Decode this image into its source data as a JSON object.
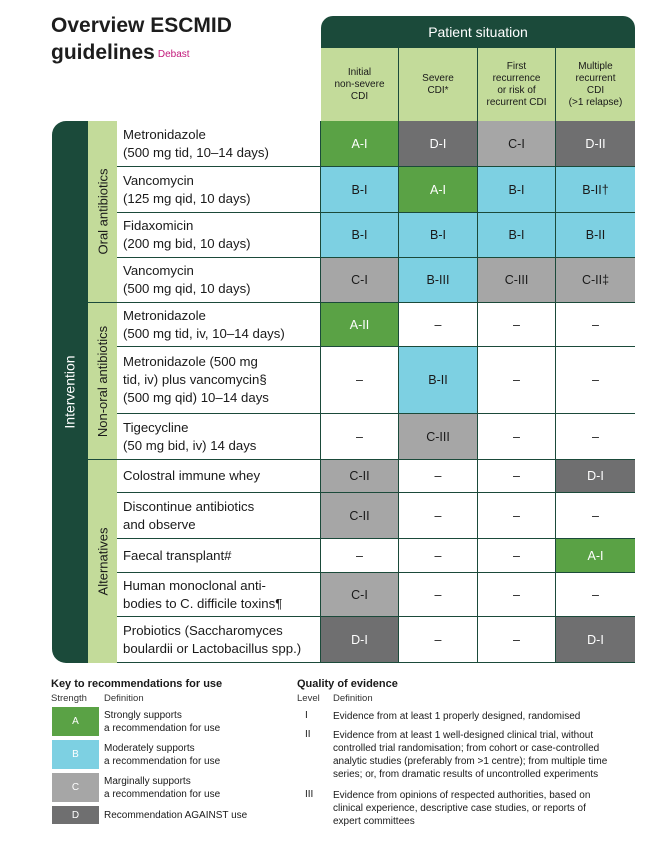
{
  "title_line1": "Overview ESCMID",
  "title_line2": "guidelines",
  "title_sup": "Debast",
  "patient_situation": "Patient situation",
  "columns": [
    [
      "Initial",
      "non-severe",
      "CDI"
    ],
    [
      "Severe",
      "CDI*"
    ],
    [
      "First",
      "recurrence",
      "or risk of",
      "recurrent CDI"
    ],
    [
      "Multiple",
      "recurrent",
      "CDI",
      "(>1 relapse)"
    ]
  ],
  "side_label": "Intervention",
  "groups": [
    "Oral antibiotics",
    "Non-oral antibiotics",
    "Alternatives"
  ],
  "rows": [
    {
      "drug": [
        "Metronidazole",
        "(500 mg tid, 10–14 days)"
      ],
      "cells": [
        [
          "A",
          "A-I"
        ],
        [
          "D",
          "D-I"
        ],
        [
          "C",
          "C-I"
        ],
        [
          "D",
          "D-II"
        ]
      ]
    },
    {
      "drug": [
        "Vancomycin",
        "(125 mg qid, 10 days)"
      ],
      "cells": [
        [
          "B",
          "B-I"
        ],
        [
          "A",
          "A-I"
        ],
        [
          "B",
          "B-I"
        ],
        [
          "B",
          "B-II†"
        ]
      ]
    },
    {
      "drug": [
        "Fidaxomicin",
        "(200 mg bid, 10 days)"
      ],
      "cells": [
        [
          "B",
          "B-I"
        ],
        [
          "B",
          "B-I"
        ],
        [
          "B",
          "B-I"
        ],
        [
          "B",
          "B-II"
        ]
      ]
    },
    {
      "drug": [
        "Vancomycin",
        "(500 mg qid, 10 days)"
      ],
      "cells": [
        [
          "C",
          "C-I"
        ],
        [
          "B",
          "B-III"
        ],
        [
          "C",
          "C-III"
        ],
        [
          "C",
          "C-II‡"
        ]
      ]
    },
    {
      "drug": [
        "Metronidazole",
        "(500 mg tid, iv, 10–14 days)"
      ],
      "cells": [
        [
          "A",
          "A-II"
        ],
        [
          "N",
          "–"
        ],
        [
          "N",
          "–"
        ],
        [
          "N",
          "–"
        ]
      ]
    },
    {
      "drug": [
        "Metronidazole (500 mg",
        "tid, iv) plus vancomycin§",
        "(500 mg qid) 10–14 days"
      ],
      "cells": [
        [
          "N",
          "–"
        ],
        [
          "B",
          "B-II"
        ],
        [
          "N",
          "–"
        ],
        [
          "N",
          "–"
        ]
      ]
    },
    {
      "drug": [
        "Tigecycline",
        "(50 mg bid, iv) 14 days"
      ],
      "cells": [
        [
          "N",
          "–"
        ],
        [
          "C",
          "C-III"
        ],
        [
          "N",
          "–"
        ],
        [
          "N",
          "–"
        ]
      ]
    },
    {
      "drug": [
        "Colostral immune whey"
      ],
      "cells": [
        [
          "C",
          "C-II"
        ],
        [
          "N",
          "–"
        ],
        [
          "N",
          "–"
        ],
        [
          "D",
          "D-I"
        ]
      ]
    },
    {
      "drug": [
        "Discontinue antibiotics",
        "and observe"
      ],
      "cells": [
        [
          "C",
          "C-II"
        ],
        [
          "N",
          "–"
        ],
        [
          "N",
          "–"
        ],
        [
          "N",
          "–"
        ]
      ]
    },
    {
      "drug": [
        "Faecal transplant#"
      ],
      "cells": [
        [
          "N",
          "–"
        ],
        [
          "N",
          "–"
        ],
        [
          "N",
          "–"
        ],
        [
          "A",
          "A-I"
        ]
      ]
    },
    {
      "drug": [
        "Human monoclonal anti-",
        "bodies to C. difficile toxins¶"
      ],
      "cells": [
        [
          "C",
          "C-I"
        ],
        [
          "N",
          "–"
        ],
        [
          "N",
          "–"
        ],
        [
          "N",
          "–"
        ]
      ]
    },
    {
      "drug": [
        "Probiotics (Saccharomyces",
        "boulardii or Lactobacillus spp.)"
      ],
      "cells": [
        [
          "D",
          "D-I"
        ],
        [
          "N",
          "–"
        ],
        [
          "N",
          "–"
        ],
        [
          "D",
          "D-I"
        ]
      ]
    }
  ],
  "key": {
    "title": "Key to recommendations for use",
    "strength": "Strength",
    "definition": "Definition",
    "items": [
      {
        "letter": "A",
        "def": [
          "Strongly supports",
          "a recommendation for use"
        ]
      },
      {
        "letter": "B",
        "def": [
          "Moderately supports",
          "a recommendation for use"
        ]
      },
      {
        "letter": "C",
        "def": [
          "Marginally supports",
          "a recommendation for use"
        ]
      },
      {
        "letter": "D",
        "def": [
          "Recommendation AGAINST use"
        ]
      }
    ]
  },
  "quality": {
    "title": "Quality of evidence",
    "level": "Level",
    "definition": "Definition",
    "items": [
      {
        "level": "I",
        "def": [
          "Evidence from at least 1 properly designed, randomised"
        ]
      },
      {
        "level": "II",
        "def": [
          "Evidence from at least 1 well-designed clinical trial, without",
          "controlled trial randomisation; from cohort or case-controlled",
          "analytic studies (preferably from >1 centre); from multiple time",
          "series; or, from dramatic results of uncontrolled experiments"
        ]
      },
      {
        "level": "III",
        "def": [
          "Evidence from opinions of respected authorities, based on",
          "clinical experience, descriptive case studies, or reports of",
          "expert committees"
        ]
      }
    ]
  },
  "colors": {
    "A": "#5aa245",
    "B": "#7dd0e2",
    "C": "#a6a6a6",
    "D": "#6f6f70",
    "frame": "#1b4a3a",
    "header": "#c3db9a"
  }
}
